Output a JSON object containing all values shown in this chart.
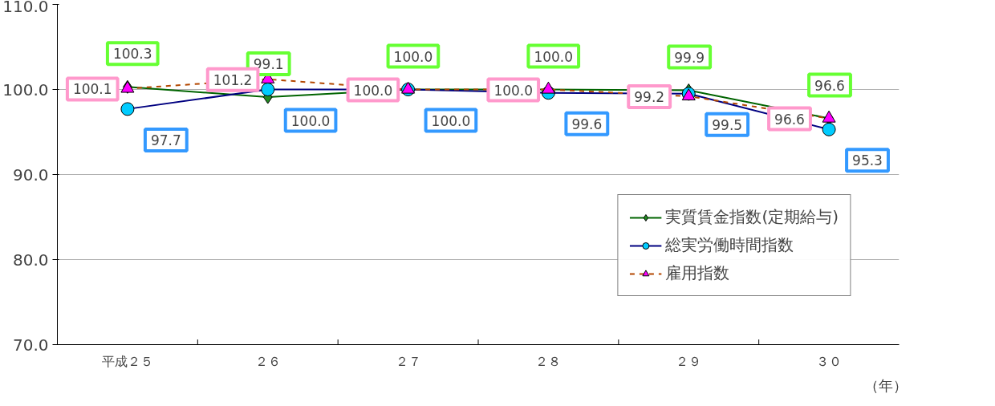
{
  "chart_data": {
    "type": "line",
    "categories": [
      "平成２５",
      "２６",
      "２７",
      "２８",
      "２９",
      "３０"
    ],
    "series": [
      {
        "name": "実質賃金指数(定期給与)",
        "color": "#006400",
        "marker": "diamond",
        "line_style": "solid",
        "values": [
          100.3,
          99.1,
          100.0,
          100.0,
          99.9,
          96.6
        ],
        "value_labels": [
          "100.3",
          "99.1",
          "100.0",
          "100.0",
          "99.9",
          "96.6"
        ]
      },
      {
        "name": "総実労働時間指数",
        "color": "#000080",
        "marker": "circle",
        "line_style": "solid",
        "values": [
          97.7,
          100.0,
          100.0,
          99.6,
          99.5,
          95.3
        ],
        "value_labels": [
          "97.7",
          "100.0",
          "100.0",
          "99.6",
          "99.5",
          "95.3"
        ]
      },
      {
        "name": "雇用指数",
        "color": "#b34700",
        "marker": "triangle",
        "line_style": "dashed",
        "values": [
          100.1,
          101.2,
          100.0,
          100.0,
          99.2,
          96.6
        ],
        "value_labels": [
          "100.1",
          "101.2",
          "100.0",
          "100.0",
          "99.2",
          "96.6"
        ]
      }
    ],
    "ylim": [
      70,
      110
    ],
    "yticks": [
      {
        "value": 70,
        "label": "70.0"
      },
      {
        "value": 80,
        "label": "80.0"
      },
      {
        "value": 90,
        "label": "90.0"
      },
      {
        "value": 100,
        "label": "100.0"
      },
      {
        "value": 110,
        "label": "110.0"
      }
    ],
    "grid": "y",
    "legend": "bottom right",
    "annotations": [
      "（年）"
    ]
  }
}
